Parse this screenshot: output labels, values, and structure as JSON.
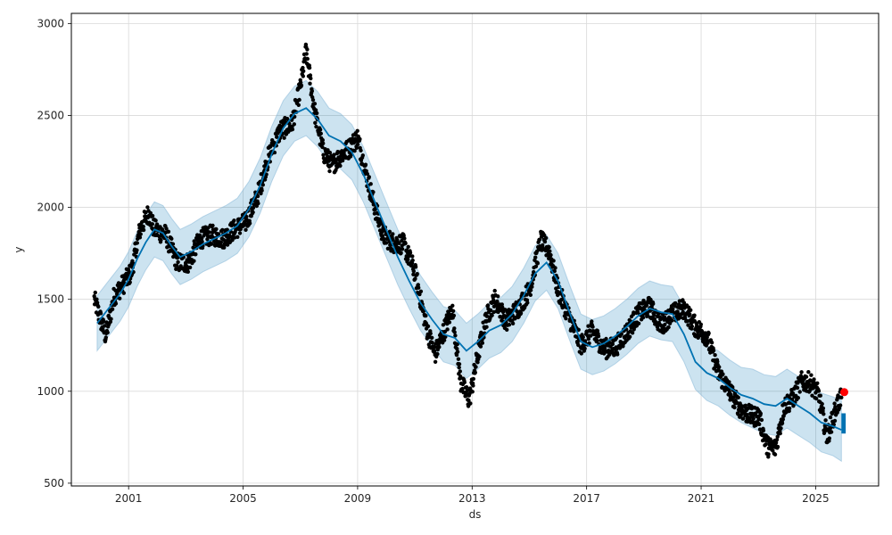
{
  "chart_data": {
    "type": "line",
    "xlabel": "ds",
    "ylabel": "y",
    "xlim": [
      1999.0,
      2027.2
    ],
    "ylim": [
      485,
      3055
    ],
    "x_ticks": [
      2001,
      2005,
      2009,
      2013,
      2017,
      2021,
      2025
    ],
    "x_tick_labels": [
      "2001",
      "2005",
      "2009",
      "2013",
      "2017",
      "2021",
      "2025"
    ],
    "y_ticks": [
      500,
      1000,
      1500,
      2000,
      2500,
      3000
    ],
    "y_tick_labels": [
      "500",
      "1000",
      "1500",
      "2000",
      "2500",
      "3000"
    ],
    "grid": true,
    "colors": {
      "observed": "#000000",
      "forecast": "#0072b2",
      "uncertainty": "#0072b2",
      "highlight": "#ff0000"
    },
    "forecast": {
      "x": [
        1999.9,
        2000.3,
        2000.7,
        2001.0,
        2001.3,
        2001.6,
        2001.9,
        2002.2,
        2002.5,
        2002.8,
        2003.2,
        2003.6,
        2004.0,
        2004.4,
        2004.8,
        2005.2,
        2005.6,
        2006.0,
        2006.4,
        2006.8,
        2007.2,
        2007.6,
        2008.0,
        2008.4,
        2008.8,
        2009.2,
        2009.6,
        2010.0,
        2010.4,
        2010.8,
        2011.2,
        2011.6,
        2012.0,
        2012.4,
        2012.8,
        2013.2,
        2013.6,
        2014.0,
        2014.4,
        2014.8,
        2015.2,
        2015.6,
        2016.0,
        2016.4,
        2016.8,
        2017.2,
        2017.6,
        2018.0,
        2018.4,
        2018.8,
        2019.2,
        2019.6,
        2020.0,
        2020.4,
        2020.8,
        2021.2,
        2021.6,
        2022.0,
        2022.4,
        2022.8,
        2023.2,
        2023.6,
        2024.0,
        2024.4,
        2024.8,
        2025.2,
        2025.6,
        2025.9
      ],
      "yhat": [
        1370,
        1450,
        1530,
        1610,
        1720,
        1810,
        1880,
        1860,
        1790,
        1730,
        1760,
        1800,
        1830,
        1860,
        1900,
        1990,
        2120,
        2290,
        2430,
        2510,
        2540,
        2480,
        2390,
        2360,
        2300,
        2180,
        2030,
        1880,
        1730,
        1600,
        1480,
        1390,
        1310,
        1290,
        1220,
        1270,
        1330,
        1360,
        1420,
        1520,
        1640,
        1700,
        1600,
        1430,
        1270,
        1240,
        1260,
        1300,
        1350,
        1410,
        1450,
        1430,
        1420,
        1310,
        1160,
        1100,
        1070,
        1020,
        980,
        960,
        930,
        920,
        960,
        920,
        880,
        830,
        810,
        790
      ],
      "lower": [
        1220,
        1300,
        1380,
        1460,
        1570,
        1660,
        1730,
        1710,
        1640,
        1580,
        1610,
        1650,
        1680,
        1710,
        1750,
        1840,
        1970,
        2140,
        2280,
        2360,
        2390,
        2330,
        2240,
        2210,
        2150,
        2030,
        1880,
        1730,
        1580,
        1450,
        1330,
        1240,
        1160,
        1140,
        1070,
        1120,
        1180,
        1210,
        1270,
        1370,
        1490,
        1550,
        1450,
        1280,
        1120,
        1090,
        1110,
        1150,
        1200,
        1260,
        1300,
        1280,
        1270,
        1160,
        1010,
        950,
        920,
        870,
        830,
        800,
        770,
        760,
        800,
        760,
        720,
        670,
        650,
        620
      ],
      "upper": [
        1520,
        1600,
        1680,
        1760,
        1870,
        1960,
        2030,
        2010,
        1940,
        1880,
        1910,
        1950,
        1980,
        2010,
        2050,
        2140,
        2270,
        2440,
        2580,
        2660,
        2690,
        2630,
        2540,
        2510,
        2450,
        2330,
        2180,
        2030,
        1880,
        1750,
        1630,
        1540,
        1460,
        1440,
        1370,
        1420,
        1480,
        1510,
        1570,
        1670,
        1790,
        1850,
        1750,
        1580,
        1420,
        1390,
        1410,
        1450,
        1500,
        1560,
        1600,
        1580,
        1570,
        1460,
        1310,
        1250,
        1220,
        1170,
        1130,
        1120,
        1090,
        1080,
        1120,
        1080,
        1040,
        990,
        970,
        950
      ]
    },
    "observed_anchors": {
      "x": [
        1999.8,
        2000.2,
        2000.5,
        2000.8,
        2001.1,
        2001.4,
        2001.7,
        2001.9,
        2002.3,
        2002.7,
        2003.1,
        2003.5,
        2003.9,
        2004.3,
        2004.7,
        2005.1,
        2005.5,
        2005.9,
        2006.3,
        2006.7,
        2007.0,
        2007.2,
        2007.5,
        2007.8,
        2008.1,
        2008.4,
        2008.7,
        2009.0,
        2009.3,
        2009.6,
        2009.9,
        2010.2,
        2010.6,
        2011.0,
        2011.4,
        2011.7,
        2012.0,
        2012.3,
        2012.6,
        2012.9,
        2013.2,
        2013.5,
        2013.8,
        2014.2,
        2014.6,
        2015.0,
        2015.4,
        2015.7,
        2016.0,
        2016.4,
        2016.8,
        2017.2,
        2017.6,
        2018.0,
        2018.4,
        2018.8,
        2019.2,
        2019.6,
        2020.0,
        2020.4,
        2020.8,
        2021.2,
        2021.6,
        2022.0,
        2022.4,
        2022.8,
        2023.0,
        2023.3,
        2023.6,
        2023.9,
        2024.2,
        2024.5,
        2024.8,
        2025.1,
        2025.4,
        2025.7,
        2025.9
      ],
      "y": [
        1500,
        1300,
        1520,
        1580,
        1650,
        1880,
        1970,
        1880,
        1850,
        1700,
        1700,
        1830,
        1850,
        1830,
        1880,
        1920,
        2060,
        2280,
        2420,
        2450,
        2650,
        2850,
        2520,
        2300,
        2230,
        2280,
        2320,
        2380,
        2180,
        2000,
        1850,
        1810,
        1800,
        1650,
        1350,
        1200,
        1320,
        1450,
        1050,
        950,
        1200,
        1400,
        1500,
        1380,
        1450,
        1550,
        1820,
        1760,
        1550,
        1400,
        1250,
        1330,
        1230,
        1240,
        1320,
        1420,
        1460,
        1360,
        1420,
        1450,
        1350,
        1300,
        1100,
        1000,
        900,
        860,
        870,
        700,
        690,
        920,
        960,
        1050,
        1050,
        980,
        750,
        900,
        980
      ]
    },
    "highlight_point": {
      "x": 2026.0,
      "y": 995
    }
  }
}
